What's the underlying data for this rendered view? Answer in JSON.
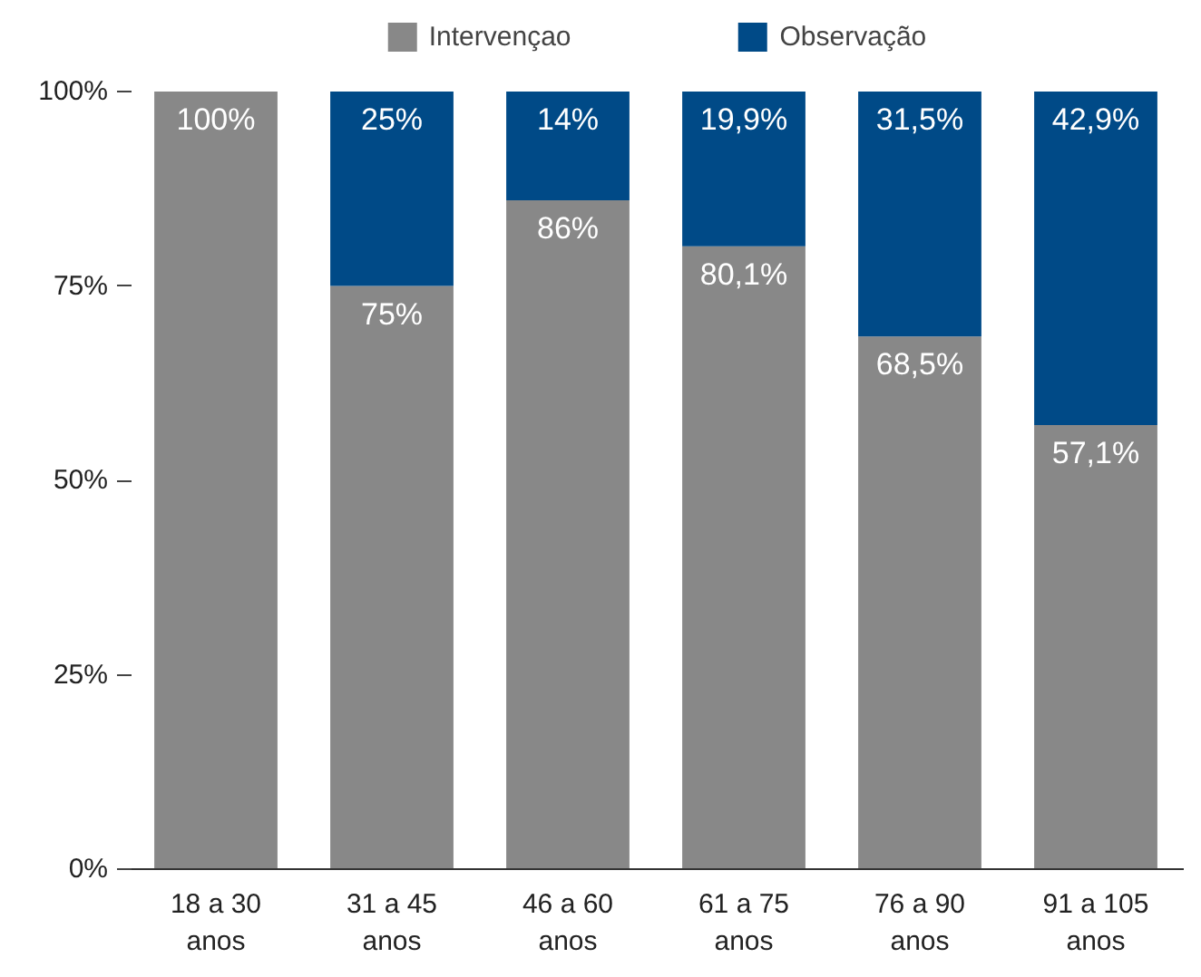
{
  "chart_data": {
    "type": "bar",
    "stacked": true,
    "categories": [
      "18 a 30 anos",
      "31 a 45 anos",
      "46 a 60 anos",
      "61 a 75 anos",
      "76 a 90 anos",
      "91 a 105 anos"
    ],
    "ylim": [
      0,
      100
    ],
    "yticks": [
      {
        "value": 0,
        "label": "0%"
      },
      {
        "value": 25,
        "label": "25%"
      },
      {
        "value": 50,
        "label": "50%"
      },
      {
        "value": 75,
        "label": "75%"
      },
      {
        "value": 100,
        "label": "100%"
      }
    ],
    "grid": false,
    "legend": "top",
    "series": [
      {
        "name": "Intervençao",
        "color": "#888888",
        "values": [
          100,
          75,
          86,
          80.1,
          68.5,
          57.1
        ],
        "value_labels": [
          "100%",
          "75%",
          "86%",
          "80,1%",
          "68,5%",
          "57,1%"
        ]
      },
      {
        "name": "Observação",
        "color": "#004a87",
        "values": [
          0,
          25,
          14,
          19.9,
          31.5,
          42.9
        ],
        "value_labels": [
          null,
          "25%",
          "14%",
          "19,9%",
          "31,5%",
          "42,9%"
        ]
      }
    ]
  }
}
